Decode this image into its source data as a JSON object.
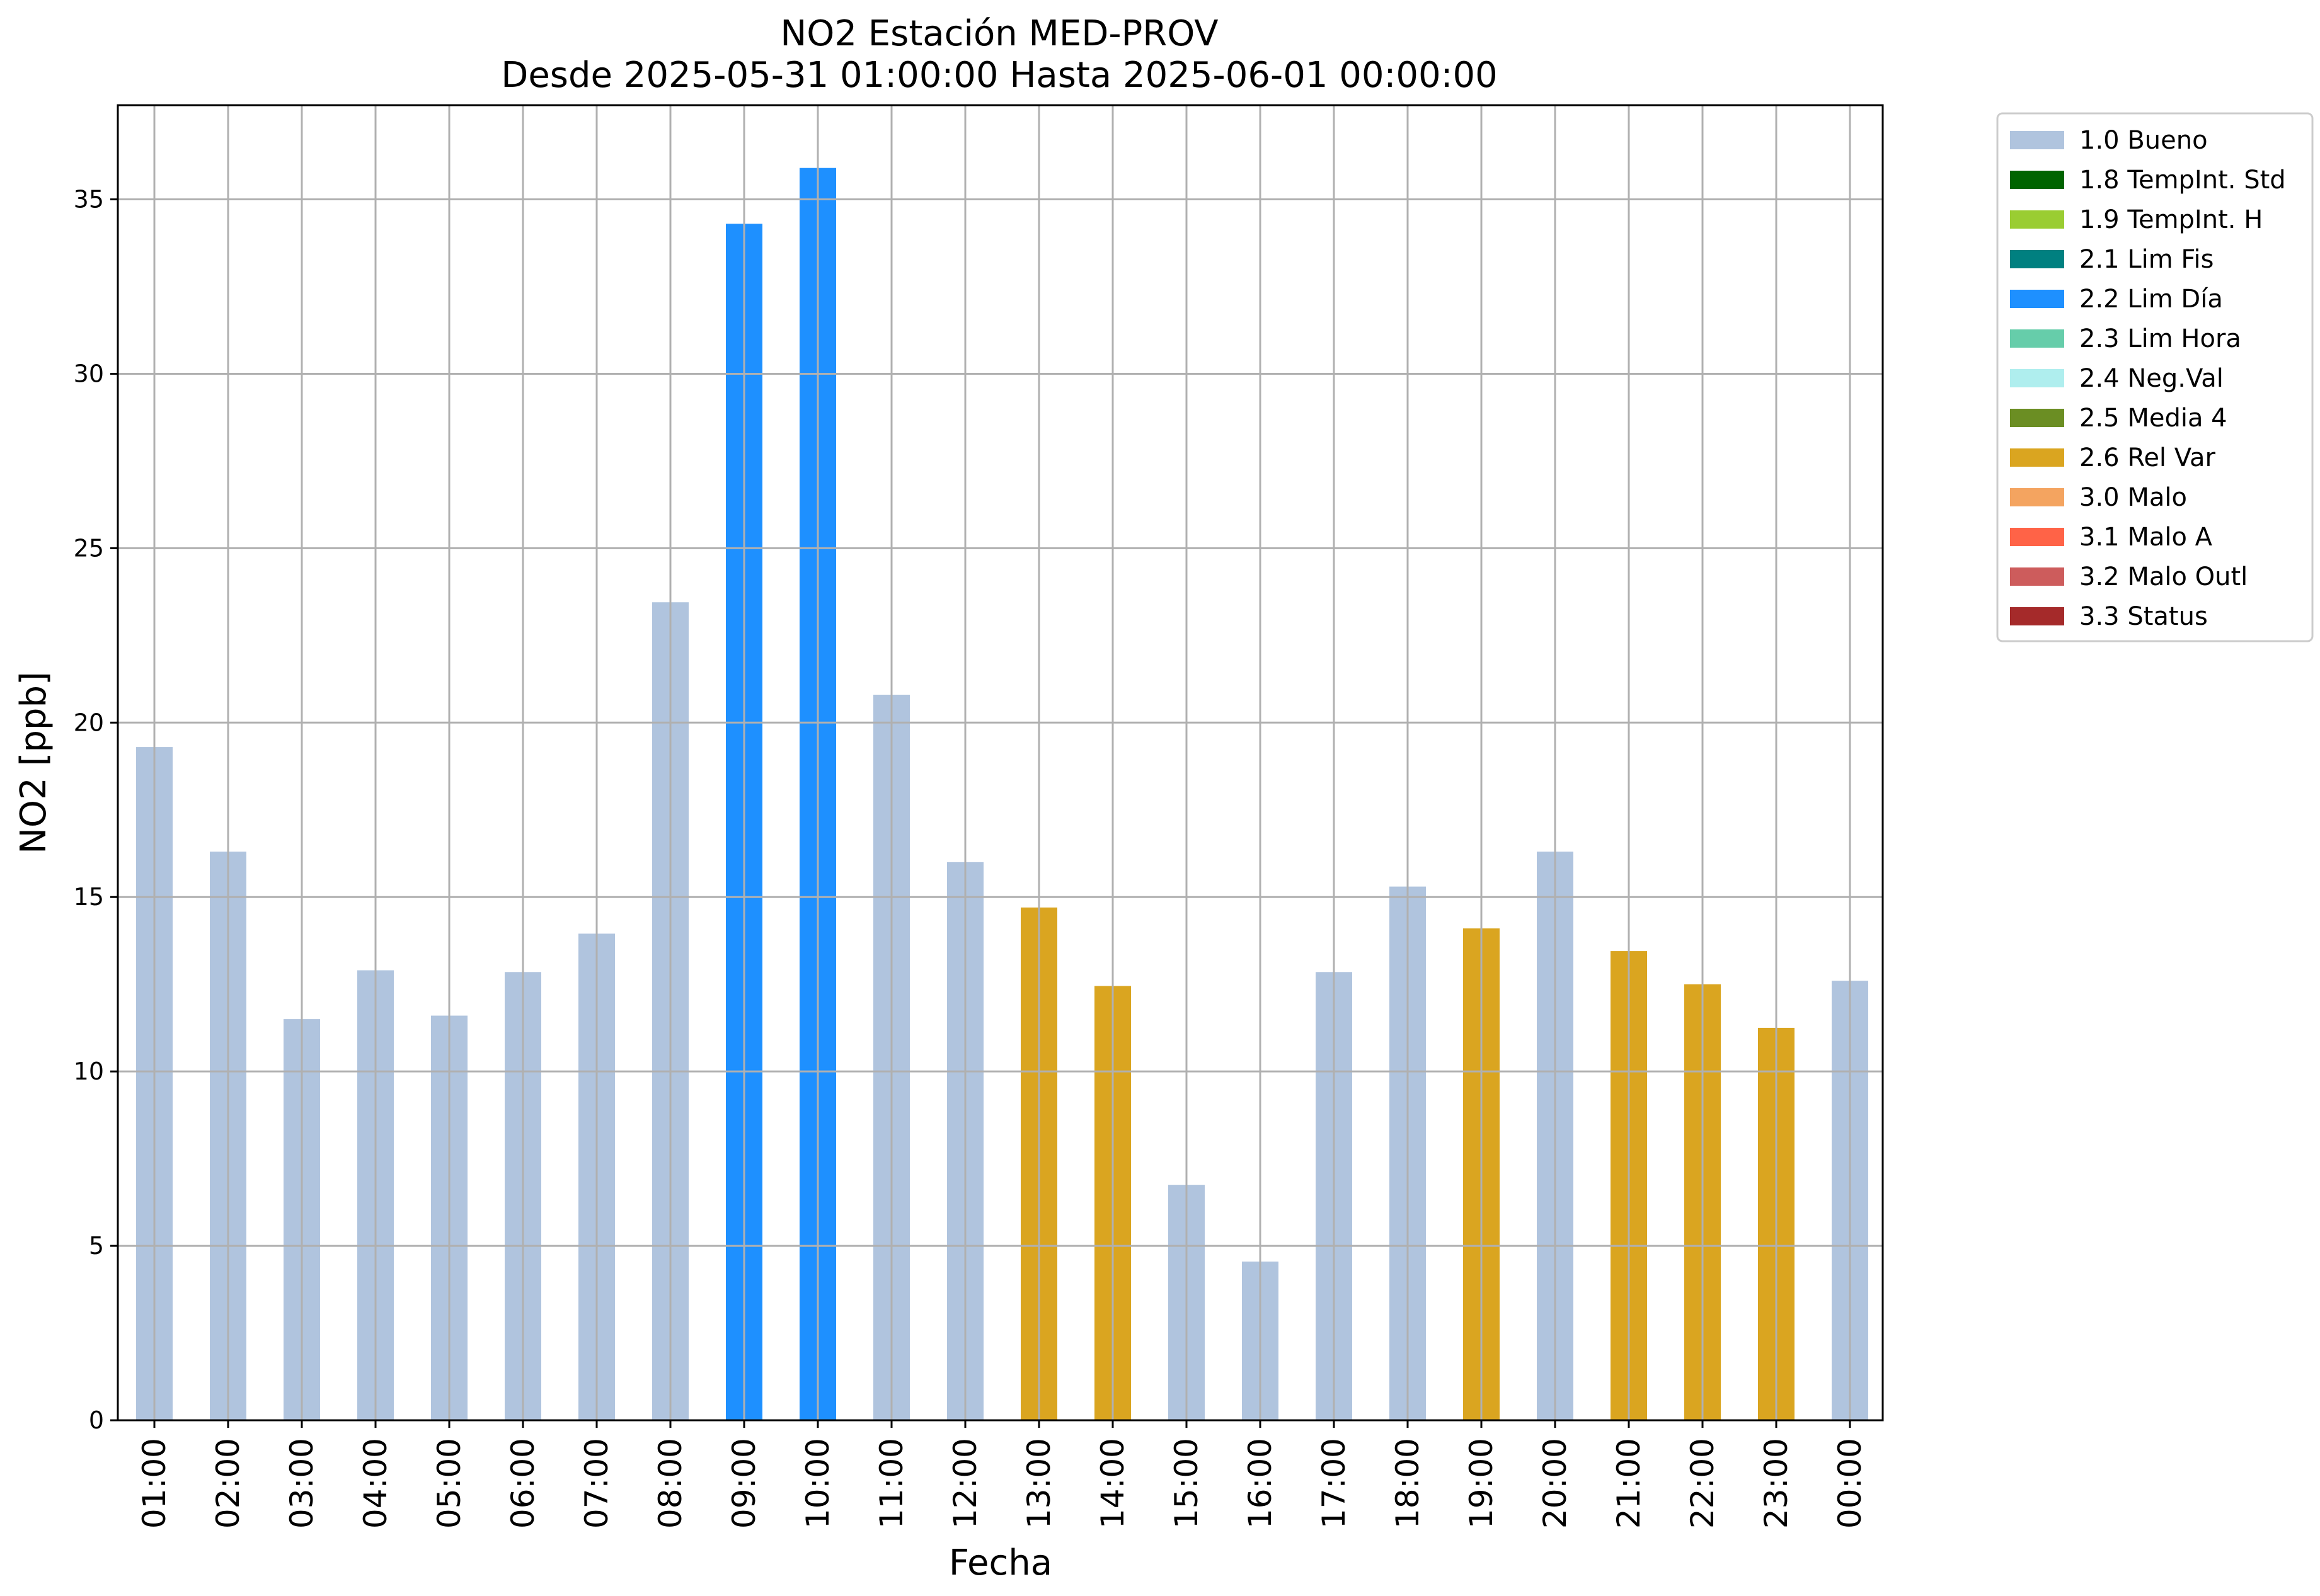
{
  "chart_data": {
    "type": "bar",
    "title": "NO2 Estación MED-PROV",
    "subtitle": "Desde 2025-05-31 01:00:00 Hasta 2025-06-01 00:00:00",
    "xlabel": "Fecha",
    "ylabel": "NO2 [ppb]",
    "ylim": [
      0,
      37.7
    ],
    "yticks": [
      0,
      5,
      10,
      15,
      20,
      25,
      30,
      35
    ],
    "grid": true,
    "legend_position": "outside-right",
    "categories": [
      "01:00",
      "02:00",
      "03:00",
      "04:00",
      "05:00",
      "06:00",
      "07:00",
      "08:00",
      "09:00",
      "10:00",
      "11:00",
      "12:00",
      "13:00",
      "14:00",
      "15:00",
      "16:00",
      "17:00",
      "18:00",
      "19:00",
      "20:00",
      "21:00",
      "22:00",
      "23:00",
      "00:00"
    ],
    "values": [
      19.3,
      16.3,
      11.5,
      12.9,
      11.6,
      12.85,
      13.95,
      23.45,
      34.3,
      35.9,
      20.8,
      16.0,
      14.7,
      12.45,
      6.75,
      4.55,
      12.85,
      15.3,
      14.1,
      16.3,
      13.45,
      12.5,
      11.25,
      12.6
    ],
    "flags": [
      "1.0 Bueno",
      "1.0 Bueno",
      "1.0 Bueno",
      "1.0 Bueno",
      "1.0 Bueno",
      "1.0 Bueno",
      "1.0 Bueno",
      "1.0 Bueno",
      "2.2 Lim Día",
      "2.2 Lim Día",
      "1.0 Bueno",
      "1.0 Bueno",
      "2.6 Rel Var",
      "2.6 Rel Var",
      "1.0 Bueno",
      "1.0 Bueno",
      "1.0 Bueno",
      "1.0 Bueno",
      "2.6 Rel Var",
      "1.0 Bueno",
      "2.6 Rel Var",
      "2.6 Rel Var",
      "2.6 Rel Var",
      "1.0 Bueno"
    ],
    "legend": [
      {
        "label": "1.0 Bueno",
        "color": "#b0c4de"
      },
      {
        "label": "1.8 TempInt. Std",
        "color": "#006400"
      },
      {
        "label": "1.9 TempInt. H",
        "color": "#9acd32"
      },
      {
        "label": "2.1 Lim Fis",
        "color": "#008080"
      },
      {
        "label": "2.2 Lim Día",
        "color": "#1e90ff"
      },
      {
        "label": "2.3 Lim Hora",
        "color": "#66cdaa"
      },
      {
        "label": "2.4 Neg.Val",
        "color": "#afeeee"
      },
      {
        "label": "2.5 Media 4",
        "color": "#6b8e23"
      },
      {
        "label": "2.6 Rel Var",
        "color": "#daa520"
      },
      {
        "label": "3.0 Malo",
        "color": "#f4a460"
      },
      {
        "label": "3.1 Malo A",
        "color": "#ff6347"
      },
      {
        "label": "3.2 Malo Outl",
        "color": "#cd5c5c"
      },
      {
        "label": "3.3 Status",
        "color": "#a52a2a"
      }
    ]
  }
}
